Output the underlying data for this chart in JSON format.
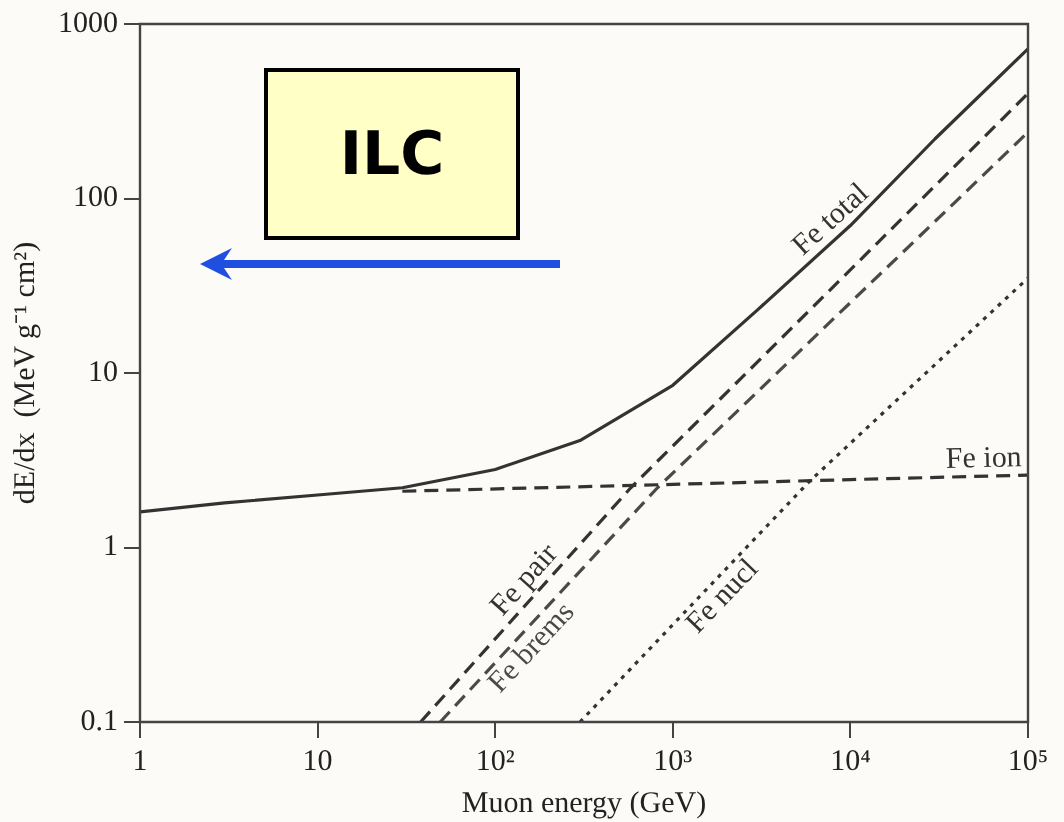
{
  "chart_data": {
    "type": "line",
    "xlabel": "Muon energy (GeV)",
    "ylabel": "dE/dx  (MeV g⁻¹ cm²)",
    "log": "xy",
    "xlim": [
      1,
      100000
    ],
    "ylim": [
      0.1,
      1000
    ],
    "xticks": [
      1,
      10,
      {
        "value": 100,
        "label": "10²"
      },
      {
        "value": 1000,
        "label": "10³"
      },
      {
        "value": 10000,
        "label": "10⁴"
      },
      {
        "value": 100000,
        "label": "10⁵"
      }
    ],
    "yticks": [
      0.1,
      1,
      10,
      100,
      1000
    ],
    "grid": false,
    "legend": false,
    "marker": "none",
    "annotations": [
      "ILC"
    ],
    "series": [
      {
        "name": "Fe total",
        "color": "#333333",
        "line_style": "solid",
        "x": [
          1,
          3,
          10,
          30,
          100,
          300,
          1000,
          3000,
          10000,
          30000,
          100000
        ],
        "values": [
          1.6,
          1.8,
          2.0,
          2.2,
          2.8,
          4.1,
          8.5,
          23,
          70,
          220,
          720
        ]
      },
      {
        "name": "Fe ion",
        "color": "#333333",
        "line_style": "dashed",
        "x": [
          30,
          1000,
          10000,
          100000
        ],
        "values": [
          2.1,
          2.3,
          2.45,
          2.6
        ]
      },
      {
        "name": "Fe pair",
        "color": "#333333",
        "line_style": "dashed",
        "x": [
          38,
          580,
          100000
        ],
        "values": [
          0.1,
          2.2,
          400
        ]
      },
      {
        "name": "Fe brems",
        "color": "#4a4a4a",
        "line_style": "dashed",
        "x": [
          49,
          820,
          100000
        ],
        "values": [
          0.1,
          2.2,
          240
        ]
      },
      {
        "name": "Fe nucl",
        "color": "#333333",
        "line_style": "dotted",
        "x": [
          300,
          5900,
          100000
        ],
        "values": [
          0.1,
          2.4,
          35
        ]
      }
    ]
  }
}
